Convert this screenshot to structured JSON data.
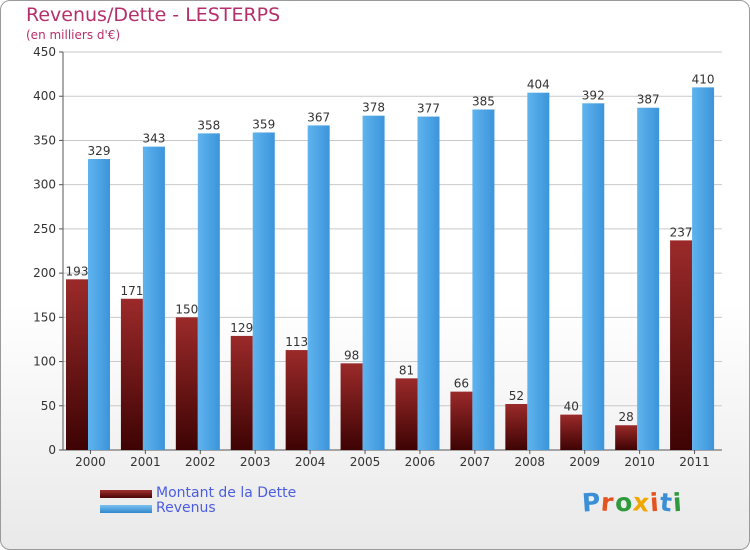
{
  "chart_data": {
    "type": "bar",
    "title": "Revenus/Dette - LESTERPS",
    "subtitle": "(en milliers d'€)",
    "categories": [
      "2000",
      "2001",
      "2002",
      "2003",
      "2004",
      "2005",
      "2006",
      "2007",
      "2008",
      "2009",
      "2010",
      "2011"
    ],
    "series": [
      {
        "name": "Montant de la Dette",
        "color": "#7a1515",
        "values": [
          193,
          171,
          150,
          129,
          113,
          98,
          81,
          66,
          52,
          40,
          28,
          237
        ]
      },
      {
        "name": "Revenus",
        "color": "#4da6e8",
        "values": [
          329,
          343,
          358,
          359,
          367,
          378,
          377,
          385,
          404,
          392,
          387,
          410
        ]
      }
    ],
    "ylim": [
      0,
      450
    ],
    "yticks": [
      0,
      50,
      100,
      150,
      200,
      250,
      300,
      350,
      400,
      450
    ],
    "grid": true,
    "legend_position": "bottom-left"
  },
  "branding": {
    "logo_text": "Proxiti",
    "logo_colors": [
      "#3a8fd6",
      "#e3521f",
      "#2f9a3c",
      "#f0a800",
      "#e3521f",
      "#3a8fd6",
      "#2f9a3c"
    ]
  }
}
